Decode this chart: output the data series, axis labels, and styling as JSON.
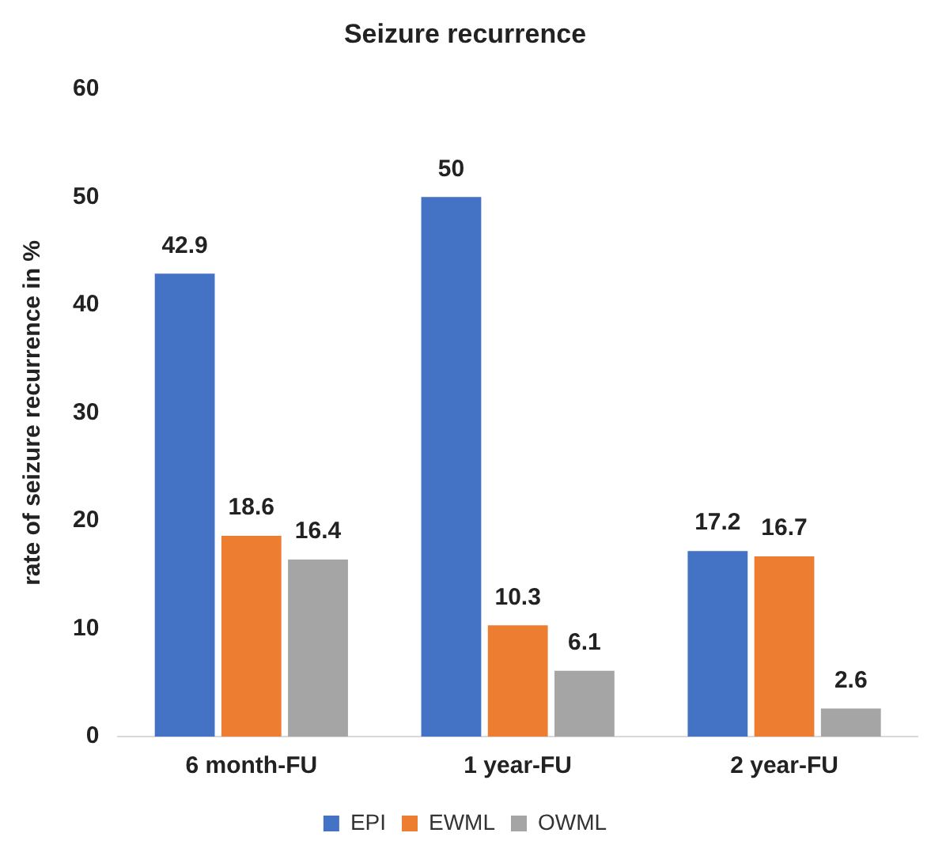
{
  "chart_data": {
    "type": "bar",
    "title": "Seizure recurrence",
    "ylabel": "rate of seizure recurrence in %",
    "categories": [
      "6 month-FU",
      "1 year-FU",
      "2 year-FU"
    ],
    "series": [
      {
        "name": "EPI",
        "color": "#4472c4",
        "values": [
          42.9,
          50,
          17.2
        ]
      },
      {
        "name": "EWML",
        "color": "#ed7d31",
        "values": [
          18.6,
          10.3,
          16.7
        ]
      },
      {
        "name": "OWML",
        "color": "#a5a5a5",
        "values": [
          16.4,
          6.1,
          2.6
        ]
      }
    ],
    "ylim": [
      0,
      60
    ],
    "yticks": [
      0,
      10,
      20,
      30,
      40,
      50,
      60
    ],
    "grid": false,
    "legend": "bottom",
    "data_labels": true
  }
}
